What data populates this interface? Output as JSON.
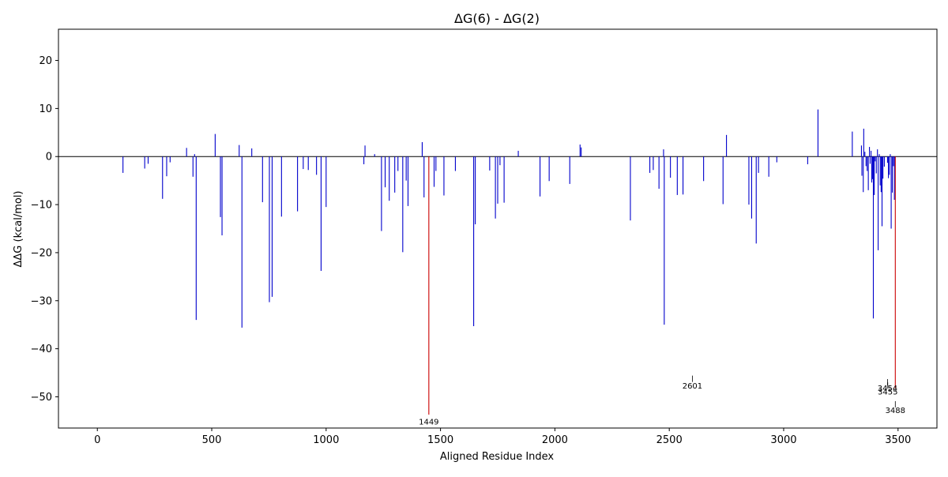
{
  "chart_data": {
    "type": "bar",
    "title": "ΔG(6) - ΔG(2)",
    "xlabel": "Aligned Residue Index",
    "ylabel": "ΔΔG (kcal/mol)",
    "xlim": [
      -170,
      3670
    ],
    "ylim": [
      -56.5,
      26.5
    ],
    "xticks": [
      0,
      500,
      1000,
      1500,
      2000,
      2500,
      3000,
      3500
    ],
    "yticks": [
      -50,
      -40,
      -30,
      -20,
      -10,
      0,
      10,
      20
    ],
    "grid": false,
    "zero_line": true,
    "colors": {
      "normal": "#0000cc",
      "highlight": "#cc0000",
      "zero_line": "#000000"
    },
    "bars": [
      {
        "x": 112,
        "y": -3.4
      },
      {
        "x": 207,
        "y": -2.5
      },
      {
        "x": 222,
        "y": -1.5
      },
      {
        "x": 285,
        "y": -8.8
      },
      {
        "x": 303,
        "y": -4.1
      },
      {
        "x": 318,
        "y": -1.2
      },
      {
        "x": 390,
        "y": 1.8
      },
      {
        "x": 418,
        "y": -4.2
      },
      {
        "x": 425,
        "y": 0.5
      },
      {
        "x": 432,
        "y": -34.0
      },
      {
        "x": 515,
        "y": 4.7
      },
      {
        "x": 538,
        "y": -12.6
      },
      {
        "x": 545,
        "y": -16.4
      },
      {
        "x": 620,
        "y": 2.4
      },
      {
        "x": 632,
        "y": -35.6
      },
      {
        "x": 675,
        "y": 1.7
      },
      {
        "x": 722,
        "y": -9.5
      },
      {
        "x": 752,
        "y": -30.3
      },
      {
        "x": 764,
        "y": -29.2
      },
      {
        "x": 805,
        "y": -12.5
      },
      {
        "x": 875,
        "y": -11.4
      },
      {
        "x": 900,
        "y": -2.6
      },
      {
        "x": 922,
        "y": -2.8
      },
      {
        "x": 958,
        "y": -3.8
      },
      {
        "x": 978,
        "y": -23.8
      },
      {
        "x": 1000,
        "y": -10.5
      },
      {
        "x": 1165,
        "y": -1.6
      },
      {
        "x": 1170,
        "y": 2.3
      },
      {
        "x": 1212,
        "y": 0.5
      },
      {
        "x": 1242,
        "y": -15.5
      },
      {
        "x": 1258,
        "y": -6.4
      },
      {
        "x": 1276,
        "y": -9.2
      },
      {
        "x": 1300,
        "y": -7.5
      },
      {
        "x": 1314,
        "y": -3.0
      },
      {
        "x": 1335,
        "y": -19.9
      },
      {
        "x": 1350,
        "y": -5.0
      },
      {
        "x": 1358,
        "y": -10.3
      },
      {
        "x": 1420,
        "y": 3.0
      },
      {
        "x": 1428,
        "y": -8.5
      },
      {
        "x": 1449,
        "y": -53.7,
        "highlight": true
      },
      {
        "x": 1472,
        "y": -6.3
      },
      {
        "x": 1480,
        "y": -3.0
      },
      {
        "x": 1515,
        "y": -8.1
      },
      {
        "x": 1565,
        "y": -3.0
      },
      {
        "x": 1645,
        "y": -35.3
      },
      {
        "x": 1652,
        "y": -14.1
      },
      {
        "x": 1715,
        "y": -2.9
      },
      {
        "x": 1740,
        "y": -12.9
      },
      {
        "x": 1750,
        "y": -9.8
      },
      {
        "x": 1760,
        "y": -1.8
      },
      {
        "x": 1778,
        "y": -9.6
      },
      {
        "x": 1840,
        "y": 1.2
      },
      {
        "x": 1935,
        "y": -8.3
      },
      {
        "x": 1975,
        "y": -5.1
      },
      {
        "x": 2065,
        "y": -5.7
      },
      {
        "x": 2110,
        "y": 2.5
      },
      {
        "x": 2115,
        "y": 1.9
      },
      {
        "x": 2330,
        "y": -13.3
      },
      {
        "x": 2415,
        "y": -3.4
      },
      {
        "x": 2430,
        "y": -2.8
      },
      {
        "x": 2455,
        "y": -6.7
      },
      {
        "x": 2475,
        "y": 1.5
      },
      {
        "x": 2478,
        "y": -35.0
      },
      {
        "x": 2505,
        "y": -4.4
      },
      {
        "x": 2535,
        "y": -8.0
      },
      {
        "x": 2560,
        "y": -7.9
      },
      {
        "x": 2650,
        "y": -5.1
      },
      {
        "x": 2735,
        "y": -9.9
      },
      {
        "x": 2750,
        "y": 4.5
      },
      {
        "x": 2848,
        "y": -10.0
      },
      {
        "x": 2860,
        "y": -12.9
      },
      {
        "x": 2880,
        "y": -18.1
      },
      {
        "x": 2890,
        "y": -3.4
      },
      {
        "x": 2935,
        "y": -4.2
      },
      {
        "x": 2970,
        "y": -1.2
      },
      {
        "x": 3105,
        "y": -1.6
      },
      {
        "x": 3150,
        "y": 9.8
      },
      {
        "x": 3300,
        "y": 5.2
      },
      {
        "x": 3340,
        "y": 2.3
      },
      {
        "x": 3342,
        "y": -4.0
      },
      {
        "x": 3348,
        "y": -7.4
      },
      {
        "x": 3350,
        "y": 5.8
      },
      {
        "x": 3355,
        "y": 1.0
      },
      {
        "x": 3360,
        "y": -2.0
      },
      {
        "x": 3365,
        "y": -3.0
      },
      {
        "x": 3370,
        "y": -7.0
      },
      {
        "x": 3375,
        "y": 2.0
      },
      {
        "x": 3378,
        "y": -1.5
      },
      {
        "x": 3382,
        "y": 1.2
      },
      {
        "x": 3385,
        "y": -5.4
      },
      {
        "x": 3388,
        "y": -4.7
      },
      {
        "x": 3392,
        "y": -33.7
      },
      {
        "x": 3396,
        "y": -8.0
      },
      {
        "x": 3400,
        "y": -1.0
      },
      {
        "x": 3405,
        "y": -3.5
      },
      {
        "x": 3410,
        "y": 1.5
      },
      {
        "x": 3413,
        "y": -19.5
      },
      {
        "x": 3418,
        "y": 0.5
      },
      {
        "x": 3422,
        "y": -6.0
      },
      {
        "x": 3426,
        "y": -7.4
      },
      {
        "x": 3430,
        "y": -14.5
      },
      {
        "x": 3434,
        "y": -4.6
      },
      {
        "x": 3440,
        "y": -2.1
      },
      {
        "x": 3454,
        "y": -1.3
      },
      {
        "x": 3458,
        "y": -4.5
      },
      {
        "x": 3462,
        "y": -3.8
      },
      {
        "x": 3466,
        "y": 0.5
      },
      {
        "x": 3470,
        "y": -15.0
      },
      {
        "x": 3475,
        "y": -7.5
      },
      {
        "x": 3480,
        "y": -2.0
      },
      {
        "x": 3484,
        "y": -9.0
      },
      {
        "x": 3488,
        "y": -48.2,
        "highlight": true
      }
    ],
    "annotations": [
      {
        "label": "1449",
        "x": 1449,
        "y_top": -53.5,
        "y_bottom": -53.5,
        "y_text": -55.8
      },
      {
        "label": "2601",
        "x": 2601,
        "y_top": -45.6,
        "y_bottom": -46.9,
        "y_text": -48.3
      },
      {
        "label": "3454",
        "x": 3454,
        "y_top": -46.3,
        "y_bottom": -47.6,
        "y_text": -48.8
      },
      {
        "label": "3455",
        "x": 3455,
        "y_top": -47.0,
        "y_bottom": -48.3,
        "y_text": -49.5
      },
      {
        "label": "3488",
        "x": 3488,
        "y_top": -50.9,
        "y_bottom": -52.2,
        "y_text": -53.4
      }
    ]
  }
}
